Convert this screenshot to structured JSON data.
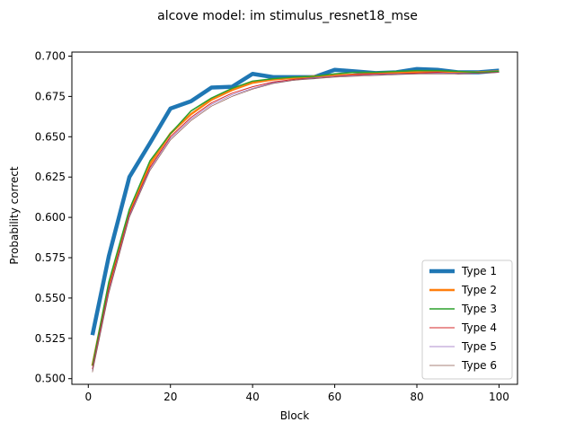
{
  "chart_data": {
    "type": "line",
    "title": "alcove model: im stimulus_resnet18_mse",
    "xlabel": "Block",
    "ylabel": "Probability correct",
    "xlim": [
      -4,
      104.5
    ],
    "ylim": [
      0.4965,
      0.7025
    ],
    "xticks": [
      0,
      20,
      40,
      60,
      80,
      100
    ],
    "xtick_labels": [
      "0",
      "20",
      "40",
      "60",
      "80",
      "100"
    ],
    "yticks": [
      0.5,
      0.525,
      0.55,
      0.575,
      0.6,
      0.625,
      0.65,
      0.675,
      0.7
    ],
    "ytick_labels": [
      "0.500",
      "0.525",
      "0.550",
      "0.575",
      "0.600",
      "0.625",
      "0.650",
      "0.675",
      "0.700"
    ],
    "grid": false,
    "legend_position": "lower-right",
    "x": [
      1,
      5,
      10,
      15,
      20,
      25,
      30,
      35,
      40,
      45,
      50,
      55,
      60,
      65,
      70,
      75,
      80,
      85,
      90,
      95,
      100
    ],
    "series": [
      {
        "name": "Type 1",
        "color": "#1f77b4",
        "width": 4.5,
        "values": [
          0.527,
          0.576,
          0.625,
          0.646,
          0.6675,
          0.672,
          0.6805,
          0.681,
          0.689,
          0.687,
          0.687,
          0.687,
          0.6915,
          0.6905,
          0.6895,
          0.69,
          0.692,
          0.6915,
          0.69,
          0.69,
          0.691
        ]
      },
      {
        "name": "Type 2",
        "color": "#ff7f0e",
        "width": 2.5,
        "values": [
          0.508,
          0.558,
          0.603,
          0.633,
          0.652,
          0.664,
          0.673,
          0.679,
          0.6835,
          0.6855,
          0.6865,
          0.6875,
          0.688,
          0.6885,
          0.689,
          0.6895,
          0.69,
          0.69,
          0.69,
          0.69,
          0.6905
        ]
      },
      {
        "name": "Type 3",
        "color": "#2ca02c",
        "width": 1.5,
        "values": [
          0.508,
          0.56,
          0.605,
          0.635,
          0.652,
          0.666,
          0.674,
          0.68,
          0.6845,
          0.686,
          0.687,
          0.6875,
          0.689,
          0.69,
          0.69,
          0.6905,
          0.691,
          0.691,
          0.6905,
          0.69,
          0.6905
        ]
      },
      {
        "name": "Type 4",
        "color": "#d62728",
        "width": 1.0,
        "values": [
          0.506,
          0.556,
          0.602,
          0.631,
          0.65,
          0.662,
          0.671,
          0.677,
          0.681,
          0.684,
          0.6855,
          0.6865,
          0.6875,
          0.6885,
          0.689,
          0.689,
          0.6895,
          0.69,
          0.689,
          0.6895,
          0.69
        ]
      },
      {
        "name": "Type 5",
        "color": "#9467bd",
        "width": 0.7,
        "values": [
          0.505,
          0.554,
          0.601,
          0.63,
          0.649,
          0.661,
          0.67,
          0.676,
          0.68,
          0.6835,
          0.685,
          0.6865,
          0.6875,
          0.688,
          0.6885,
          0.689,
          0.689,
          0.6895,
          0.6895,
          0.6895,
          0.69
        ]
      },
      {
        "name": "Type 6",
        "color": "#8c564b",
        "width": 0.7,
        "values": [
          0.504,
          0.553,
          0.6,
          0.629,
          0.648,
          0.66,
          0.669,
          0.675,
          0.6795,
          0.683,
          0.685,
          0.686,
          0.687,
          0.6875,
          0.688,
          0.6885,
          0.689,
          0.689,
          0.689,
          0.6895,
          0.69
        ]
      }
    ]
  }
}
